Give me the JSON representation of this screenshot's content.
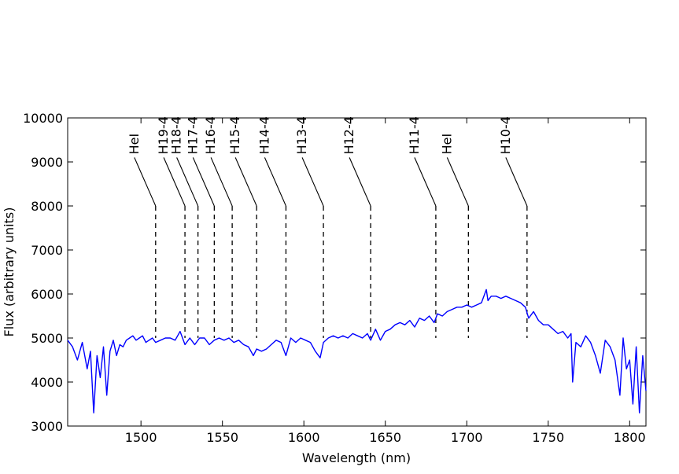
{
  "chart_data": {
    "type": "line",
    "title": "",
    "xlabel": "Wavelength (nm)",
    "ylabel": "Flux (arbitrary units)",
    "xlim": [
      1455,
      1810
    ],
    "ylim": [
      3000,
      10000
    ],
    "xticks": [
      1500,
      1550,
      1600,
      1650,
      1700,
      1750,
      1800
    ],
    "yticks": [
      3000,
      4000,
      5000,
      6000,
      7000,
      8000,
      9000,
      10000
    ],
    "grid": false,
    "legend": "none",
    "line_color": "#0000ff",
    "series": [
      {
        "x": [
          1455,
          1458,
          1461,
          1464,
          1467,
          1469,
          1471,
          1473,
          1475,
          1477,
          1479,
          1481,
          1483,
          1485,
          1487,
          1489,
          1491,
          1493,
          1495,
          1497,
          1499,
          1501,
          1503,
          1505,
          1507,
          1509,
          1512,
          1515,
          1518,
          1521,
          1524,
          1527,
          1530,
          1533,
          1536,
          1539,
          1542,
          1545,
          1548,
          1551,
          1554,
          1557,
          1560,
          1563,
          1566,
          1569,
          1571,
          1574,
          1577,
          1580,
          1583,
          1586,
          1589,
          1592,
          1595,
          1598,
          1601,
          1604,
          1607,
          1610,
          1612,
          1615,
          1618,
          1621,
          1624,
          1627,
          1630,
          1633,
          1636,
          1639,
          1641,
          1644,
          1647,
          1650,
          1653,
          1656,
          1659,
          1662,
          1665,
          1668,
          1671,
          1674,
          1677,
          1680,
          1682,
          1685,
          1688,
          1691,
          1694,
          1697,
          1700,
          1703,
          1706,
          1709,
          1712,
          1713,
          1715,
          1718,
          1721,
          1724,
          1727,
          1730,
          1733,
          1736,
          1738,
          1741,
          1744,
          1747,
          1750,
          1753,
          1756,
          1759,
          1762,
          1764,
          1765,
          1767,
          1770,
          1773,
          1776,
          1779,
          1782,
          1785,
          1788,
          1791,
          1794,
          1796,
          1798,
          1800,
          1802,
          1804,
          1806,
          1808,
          1810
        ],
        "y": [
          4950,
          4800,
          4500,
          4900,
          4300,
          4700,
          3300,
          4600,
          4100,
          4800,
          3700,
          4700,
          4950,
          4600,
          4850,
          4800,
          4950,
          5000,
          5050,
          4950,
          5000,
          5050,
          4900,
          4950,
          5000,
          4900,
          4950,
          5000,
          5000,
          4950,
          5150,
          4850,
          5000,
          4850,
          5000,
          5000,
          4850,
          4950,
          5000,
          4950,
          5000,
          4900,
          4950,
          4850,
          4800,
          4600,
          4750,
          4700,
          4750,
          4850,
          4950,
          4900,
          4600,
          5000,
          4900,
          5000,
          4950,
          4900,
          4700,
          4550,
          4900,
          5000,
          5050,
          5000,
          5050,
          5000,
          5100,
          5050,
          5000,
          5100,
          4950,
          5200,
          4950,
          5150,
          5200,
          5300,
          5350,
          5300,
          5400,
          5250,
          5450,
          5400,
          5500,
          5350,
          5550,
          5500,
          5600,
          5650,
          5700,
          5700,
          5750,
          5700,
          5750,
          5800,
          6100,
          5850,
          5950,
          5950,
          5900,
          5950,
          5900,
          5850,
          5800,
          5700,
          5450,
          5600,
          5400,
          5300,
          5300,
          5200,
          5100,
          5150,
          5000,
          5100,
          4000,
          4900,
          4800,
          5050,
          4900,
          4600,
          4200,
          4950,
          4800,
          4500,
          3700,
          5000,
          4300,
          4500,
          3500,
          4800,
          3300,
          4600,
          3800
        ]
      }
    ],
    "annotations": [
      {
        "label": "HeI",
        "x": 1509
      },
      {
        "label": "H19-4",
        "x": 1527
      },
      {
        "label": "H18-4",
        "x": 1535
      },
      {
        "label": "H17-4",
        "x": 1545
      },
      {
        "label": "H16-4",
        "x": 1556
      },
      {
        "label": "H15-4",
        "x": 1571
      },
      {
        "label": "H14-4",
        "x": 1589
      },
      {
        "label": "H13-4",
        "x": 1612
      },
      {
        "label": "H12-4",
        "x": 1641
      },
      {
        "label": "H11-4",
        "x": 1681
      },
      {
        "label": "HeI",
        "x": 1701
      },
      {
        "label": "H10-4",
        "x": 1737
      }
    ]
  }
}
